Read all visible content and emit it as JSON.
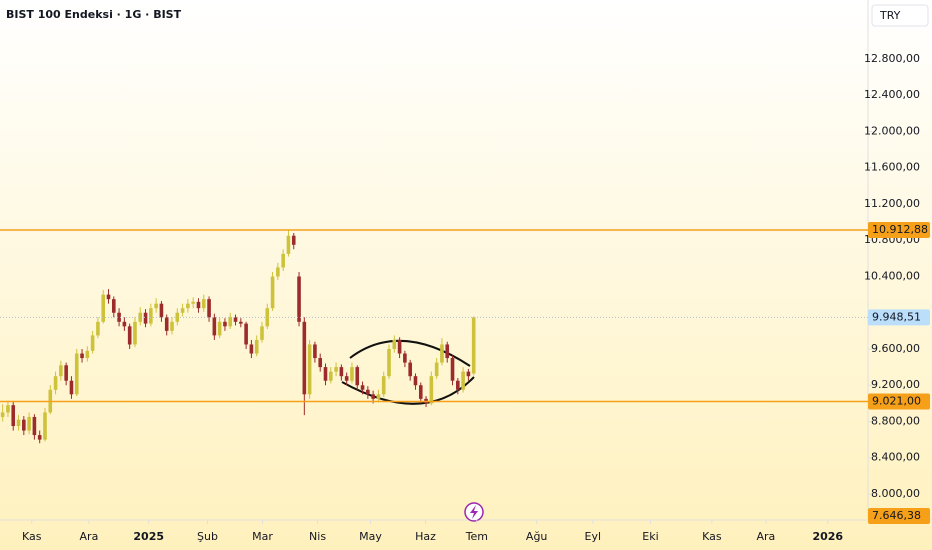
{
  "chart_data": {
    "type": "candlestick",
    "title": "BIST 100 Endeksi · 1G · BIST",
    "currency": "TRY",
    "ohlc": [
      [
        8850,
        8990,
        8800,
        8900
      ],
      [
        8900,
        9030,
        8850,
        8980
      ],
      [
        8980,
        9020,
        8700,
        8750
      ],
      [
        8750,
        8870,
        8700,
        8820
      ],
      [
        8820,
        8860,
        8650,
        8700
      ],
      [
        8700,
        8900,
        8660,
        8850
      ],
      [
        8850,
        8880,
        8600,
        8650
      ],
      [
        8650,
        8700,
        8560,
        8600
      ],
      [
        8600,
        8950,
        8580,
        8900
      ],
      [
        8900,
        9200,
        8880,
        9150
      ],
      [
        9150,
        9350,
        9100,
        9300
      ],
      [
        9300,
        9470,
        9250,
        9420
      ],
      [
        9420,
        9450,
        9200,
        9250
      ],
      [
        9250,
        9300,
        9050,
        9100
      ],
      [
        9100,
        9600,
        9080,
        9550
      ],
      [
        9550,
        9600,
        9450,
        9500
      ],
      [
        9500,
        9630,
        9460,
        9580
      ],
      [
        9580,
        9800,
        9550,
        9750
      ],
      [
        9750,
        9950,
        9720,
        9900
      ],
      [
        9900,
        10250,
        9880,
        10200
      ],
      [
        10200,
        10260,
        10100,
        10150
      ],
      [
        10150,
        10180,
        9950,
        10000
      ],
      [
        10000,
        10050,
        9850,
        9900
      ],
      [
        9900,
        9950,
        9800,
        9850
      ],
      [
        9850,
        9880,
        9600,
        9650
      ],
      [
        9650,
        9950,
        9620,
        9900
      ],
      [
        9900,
        10060,
        9860,
        10000
      ],
      [
        10000,
        10040,
        9840,
        9880
      ],
      [
        9880,
        10100,
        9850,
        10050
      ],
      [
        10050,
        10160,
        10000,
        10100
      ],
      [
        10100,
        10130,
        9900,
        9950
      ],
      [
        9950,
        9980,
        9750,
        9800
      ],
      [
        9800,
        9950,
        9760,
        9900
      ],
      [
        9900,
        10050,
        9860,
        10000
      ],
      [
        10000,
        10100,
        9960,
        10050
      ],
      [
        10050,
        10150,
        10000,
        10100
      ],
      [
        10100,
        10170,
        10050,
        10120
      ],
      [
        10120,
        10160,
        10000,
        10050
      ],
      [
        10050,
        10200,
        10010,
        10150
      ],
      [
        10150,
        10180,
        9900,
        9950
      ],
      [
        9950,
        9990,
        9700,
        9750
      ],
      [
        9750,
        9950,
        9720,
        9900
      ],
      [
        9900,
        9940,
        9800,
        9850
      ],
      [
        9850,
        10000,
        9820,
        9950
      ],
      [
        9950,
        9980,
        9860,
        9900
      ],
      [
        9900,
        9940,
        9840,
        9880
      ],
      [
        9880,
        9900,
        9600,
        9650
      ],
      [
        9650,
        9700,
        9500,
        9550
      ],
      [
        9550,
        9750,
        9520,
        9700
      ],
      [
        9700,
        9900,
        9670,
        9850
      ],
      [
        9850,
        10100,
        9820,
        10050
      ],
      [
        10050,
        10450,
        10020,
        10400
      ],
      [
        10400,
        10550,
        10360,
        10500
      ],
      [
        10500,
        10700,
        10460,
        10650
      ],
      [
        10650,
        10920,
        10620,
        10850
      ],
      [
        10850,
        10880,
        10700,
        10750
      ],
      [
        10400,
        10450,
        9850,
        9900
      ],
      [
        9900,
        9950,
        8870,
        9100
      ],
      [
        9100,
        9700,
        9050,
        9650
      ],
      [
        9650,
        9680,
        9450,
        9500
      ],
      [
        9500,
        9550,
        9350,
        9400
      ],
      [
        9400,
        9440,
        9200,
        9250
      ],
      [
        9250,
        9400,
        9220,
        9350
      ],
      [
        9350,
        9450,
        9300,
        9400
      ],
      [
        9400,
        9430,
        9250,
        9300
      ],
      [
        9300,
        9340,
        9200,
        9250
      ],
      [
        9250,
        9450,
        9220,
        9400
      ],
      [
        9400,
        9420,
        9150,
        9200
      ],
      [
        9200,
        9240,
        9100,
        9150
      ],
      [
        9150,
        9190,
        9050,
        9100
      ],
      [
        9100,
        9140,
        9000,
        9050
      ],
      [
        9050,
        9150,
        9010,
        9100
      ],
      [
        9100,
        9350,
        9070,
        9300
      ],
      [
        9300,
        9650,
        9270,
        9600
      ],
      [
        9600,
        9750,
        9560,
        9700
      ],
      [
        9700,
        9730,
        9500,
        9550
      ],
      [
        9550,
        9580,
        9400,
        9450
      ],
      [
        9450,
        9480,
        9250,
        9300
      ],
      [
        9300,
        9330,
        9150,
        9200
      ],
      [
        9200,
        9230,
        9000,
        9050
      ],
      [
        9050,
        9080,
        8960,
        9000
      ],
      [
        9000,
        9350,
        8980,
        9300
      ],
      [
        9300,
        9500,
        9270,
        9450
      ],
      [
        9450,
        9720,
        9420,
        9650
      ],
      [
        9650,
        9680,
        9450,
        9500
      ],
      [
        9500,
        9530,
        9200,
        9250
      ],
      [
        9250,
        9280,
        9100,
        9150
      ],
      [
        9150,
        9400,
        9120,
        9350
      ],
      [
        9350,
        9380,
        9250,
        9300
      ],
      [
        9330,
        9960,
        9310,
        9948.51
      ]
    ],
    "up_color": "#cdc23a",
    "down_color": "#9c2b2b",
    "xlim": [
      -0.5,
      163.5
    ],
    "xticks": [
      {
        "value": 5.5,
        "label": "Kas"
      },
      {
        "value": 16.3,
        "label": "Ara"
      },
      {
        "value": 27.6,
        "label": "2025"
      },
      {
        "value": 38.7,
        "label": "Şub"
      },
      {
        "value": 49.1,
        "label": "Mar"
      },
      {
        "value": 59.5,
        "label": "Nis"
      },
      {
        "value": 69.5,
        "label": "May"
      },
      {
        "value": 79.9,
        "label": "Haz"
      },
      {
        "value": 89.6,
        "label": "Tem"
      },
      {
        "value": 100.9,
        "label": "Ağu"
      },
      {
        "value": 111.5,
        "label": "Eyl"
      },
      {
        "value": 122.4,
        "label": "Eki"
      },
      {
        "value": 134,
        "label": "Kas"
      },
      {
        "value": 144.2,
        "label": "Ara"
      },
      {
        "value": 155.9,
        "label": "2026"
      }
    ],
    "ylim": [
      7713,
      13451
    ],
    "yticks": [
      {
        "value": 8000,
        "label": "8.000,00"
      },
      {
        "value": 8400,
        "label": "8.400,00"
      },
      {
        "value": 8800,
        "label": "8.800,00"
      },
      {
        "value": 9200,
        "label": "9.200,00"
      },
      {
        "value": 9600,
        "label": "9.600,00"
      },
      {
        "value": 10400,
        "label": "10.400,00"
      },
      {
        "value": 10800,
        "label": "10.800,00"
      },
      {
        "value": 11200,
        "label": "11.200,00"
      },
      {
        "value": 11600,
        "label": "11.600,00"
      },
      {
        "value": 12000,
        "label": "12.000,00"
      },
      {
        "value": 12400,
        "label": "12.400,00"
      },
      {
        "value": 12800,
        "label": "12.800,00"
      }
    ],
    "levels": [
      {
        "value": 10912.88,
        "label": "10.912,88"
      },
      {
        "value": 9021,
        "label": "9.021,00"
      }
    ],
    "level_color": "#f5a018",
    "last_price": {
      "value": 9948.51,
      "label": "9.948,51"
    },
    "low_label": {
      "value": 7646.38,
      "label": "7.646,38"
    }
  }
}
